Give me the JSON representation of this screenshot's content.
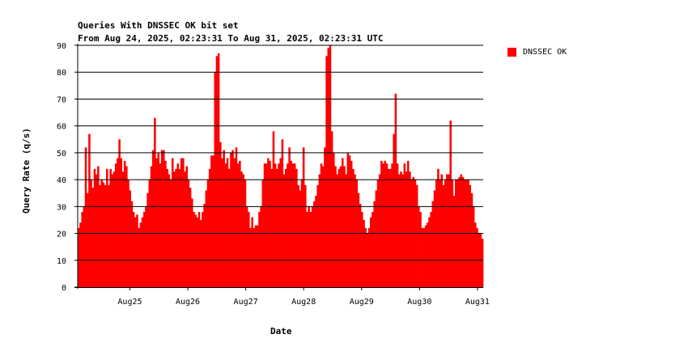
{
  "chart_data": {
    "type": "bar",
    "title": "Queries With DNSSEC OK bit set",
    "subtitle": "From Aug 24, 2025, 02:23:31 To Aug 31, 2025, 02:23:31 UTC",
    "xlabel": "Date",
    "ylabel": "Query Rate (q/s)",
    "ylim": [
      0,
      90
    ],
    "yticks": [
      0,
      10,
      20,
      30,
      40,
      50,
      60,
      70,
      80,
      90
    ],
    "x_start": "Aug 24 02:23",
    "x_end": "Aug 31 02:23",
    "xticks": [
      "Aug25",
      "Aug26",
      "Aug27",
      "Aug28",
      "Aug29",
      "Aug30",
      "Aug31"
    ],
    "grid": "horizontal",
    "legend_position": "right",
    "colors": {
      "series": "#ff0000"
    },
    "series": [
      {
        "name": "DNSSEC OK",
        "values": [
          22,
          24,
          28,
          30,
          52,
          35,
          57,
          40,
          37,
          44,
          42,
          45,
          38,
          40,
          39,
          38,
          44,
          38,
          44,
          42,
          43,
          46,
          48,
          55,
          48,
          43,
          47,
          45,
          40,
          36,
          32,
          28,
          26,
          27,
          22,
          24,
          26,
          28,
          30,
          35,
          40,
          45,
          51,
          63,
          48,
          50,
          46,
          51,
          51,
          47,
          44,
          42,
          40,
          48,
          43,
          44,
          46,
          44,
          48,
          48,
          43,
          45,
          40,
          37,
          33,
          28,
          27,
          26,
          28,
          25,
          28,
          31,
          36,
          40,
          44,
          49,
          49,
          80,
          86,
          87,
          54,
          48,
          51,
          46,
          48,
          44,
          50,
          51,
          48,
          52,
          46,
          47,
          43,
          42,
          40,
          30,
          28,
          22,
          26,
          22,
          23,
          23,
          28,
          30,
          40,
          46,
          46,
          48,
          47,
          44,
          58,
          46,
          44,
          46,
          48,
          55,
          42,
          44,
          46,
          52,
          47,
          46,
          46,
          44,
          38,
          36,
          40,
          52,
          38,
          28,
          30,
          28,
          30,
          32,
          34,
          38,
          42,
          46,
          45,
          52,
          86,
          89,
          90,
          58,
          50,
          45,
          42,
          44,
          45,
          48,
          45,
          42,
          50,
          49,
          47,
          44,
          42,
          40,
          35,
          31,
          28,
          25,
          22,
          20,
          22,
          26,
          28,
          32,
          36,
          40,
          42,
          47,
          46,
          47,
          46,
          44,
          44,
          46,
          57,
          72,
          46,
          42,
          43,
          42,
          46,
          43,
          47,
          43,
          40,
          41,
          40,
          38,
          30,
          28,
          22,
          22,
          23,
          24,
          26,
          28,
          32,
          36,
          40,
          44,
          40,
          42,
          38,
          40,
          42,
          42,
          62,
          40,
          34,
          40,
          40,
          41,
          42,
          41,
          40,
          40,
          40,
          38,
          35,
          30,
          24,
          22,
          20,
          20,
          18
        ]
      }
    ]
  }
}
